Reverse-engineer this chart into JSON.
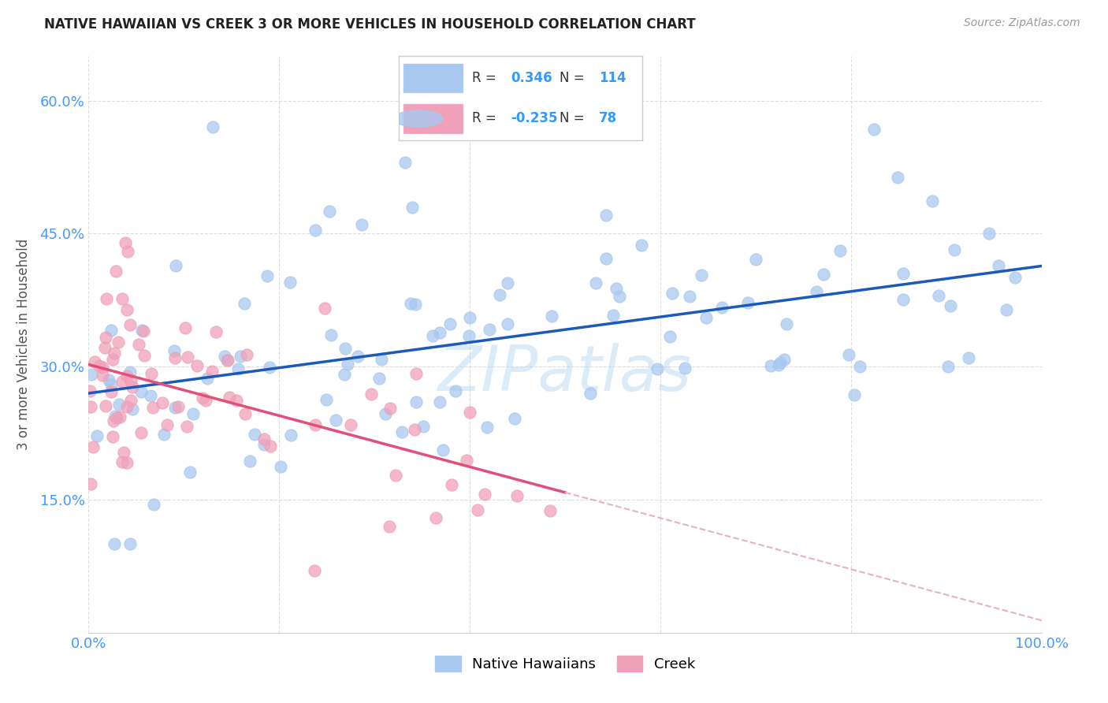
{
  "title": "NATIVE HAWAIIAN VS CREEK 3 OR MORE VEHICLES IN HOUSEHOLD CORRELATION CHART",
  "source": "Source: ZipAtlas.com",
  "ylabel": "3 or more Vehicles in Household",
  "xlim": [
    0.0,
    1.0
  ],
  "ylim": [
    0.0,
    0.65
  ],
  "xticks": [
    0.0,
    0.2,
    0.4,
    0.6,
    0.8,
    1.0
  ],
  "xticklabels": [
    "0.0%",
    "",
    "",
    "",
    "",
    "100.0%"
  ],
  "yticks": [
    0.15,
    0.3,
    0.45,
    0.6
  ],
  "yticklabels": [
    "15.0%",
    "30.0%",
    "45.0%",
    "60.0%"
  ],
  "hawaii_color": "#a8c8f0",
  "creek_color": "#f0a0b8",
  "hawaii_line_color": "#1a5aba",
  "creek_line_color": "#e0507a",
  "creek_line_dashed_color": "#e8b0c4",
  "R_hawaii": 0.346,
  "N_hawaii": 114,
  "R_creek": -0.235,
  "N_creek": 78,
  "legend_label_hawaii": "Native Hawaiians",
  "legend_label_creek": "Creek",
  "background_color": "#ffffff",
  "grid_color": "#dddddd",
  "watermark": "ZIPatlas",
  "tick_color": "#4499ff",
  "title_color": "#222222",
  "source_color": "#999999",
  "ylabel_color": "#555555"
}
